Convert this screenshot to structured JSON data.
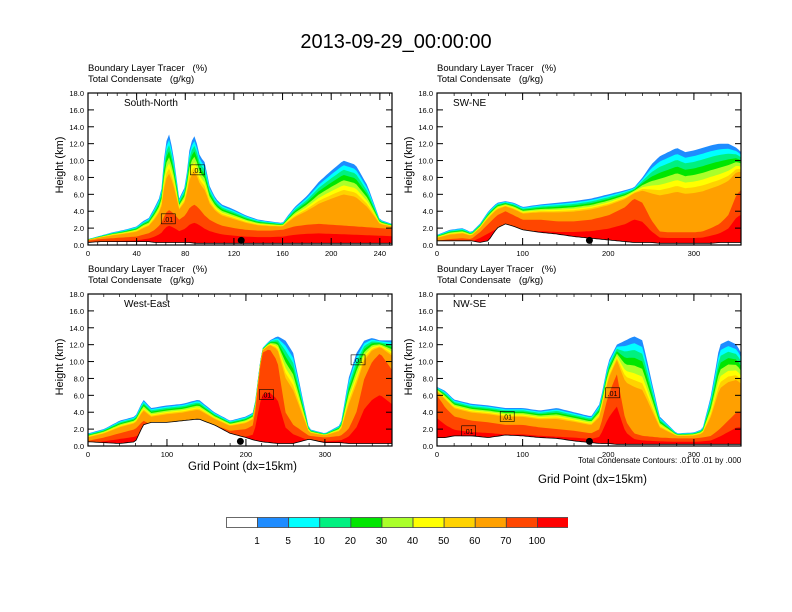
{
  "title": "2013-09-29_00:00:00",
  "legend": {
    "colors": [
      "#ffffff",
      "#1e8cff",
      "#00ffff",
      "#00f080",
      "#00e600",
      "#aaff2a",
      "#ffff00",
      "#ffd200",
      "#ffa000",
      "#ff4600",
      "#ff0000"
    ],
    "labels": [
      "1",
      "5",
      "10",
      "20",
      "30",
      "40",
      "50",
      "60",
      "70",
      "100"
    ]
  },
  "footnote": "Total Condensate Contours: .01 to .01 by .000",
  "chart_data": [
    {
      "type": "heatmap",
      "panel": "South-North",
      "header_line1": "Boundary Layer Tracer   (%)",
      "header_line2": "Total Condensate   (g/kg)",
      "ylabel": "Height (km)",
      "xlabel": "",
      "ylim": [
        0,
        18
      ],
      "yticks": [
        "0.0",
        "2.0",
        "4.0",
        "6.0",
        "8.0",
        "10.0",
        "12.0",
        "14.0",
        "16.0",
        "18.0"
      ],
      "xlim": [
        0,
        250
      ],
      "xticks": [
        "0",
        "40",
        "80",
        "120",
        "160",
        "200",
        "240"
      ],
      "xtick_values": [
        0,
        40,
        80,
        120,
        160,
        200,
        240
      ],
      "marker_x": 126,
      "contour_label": ".01",
      "contour_label_positions": [
        [
          66,
          3.1
        ],
        [
          90,
          8.9
        ]
      ],
      "cloud_profile": {
        "x": [
          0,
          10,
          20,
          30,
          40,
          45,
          50,
          55,
          60,
          63,
          66,
          70,
          75,
          80,
          84,
          88,
          92,
          96,
          100,
          105,
          110,
          120,
          130,
          140,
          150,
          160,
          165,
          170,
          180,
          190,
          200,
          210,
          220,
          230,
          240,
          250
        ],
        "top": [
          0.7,
          1.1,
          1.5,
          1.8,
          2.2,
          2.8,
          3.2,
          4.5,
          6.0,
          11.0,
          13.5,
          11.0,
          5.5,
          7.0,
          12.0,
          13.0,
          10.5,
          9.8,
          7.0,
          5.5,
          4.8,
          4.2,
          3.5,
          3.0,
          2.8,
          2.6,
          3.6,
          4.5,
          5.8,
          7.5,
          8.8,
          10.0,
          9.5,
          7.0,
          3.0,
          2.5
        ],
        "red_top": [
          0.5,
          0.7,
          0.8,
          0.9,
          1.0,
          1.2,
          1.4,
          1.8,
          2.5,
          3.5,
          4.2,
          3.8,
          3.0,
          3.5,
          4.5,
          4.8,
          4.2,
          3.5,
          3.0,
          2.6,
          2.3,
          2.0,
          1.8,
          1.7,
          1.7,
          1.8,
          2.0,
          2.2,
          2.4,
          2.5,
          2.4,
          2.3,
          2.2,
          2.1,
          2.0,
          1.9
        ]
      },
      "terrain": [
        0.3,
        0.4,
        0.4,
        0.4,
        0.4,
        0.4,
        0.4,
        0.3,
        0.3,
        0.3,
        0.3,
        0.3,
        0.3,
        0.3,
        0.3,
        0.2,
        0.2,
        0.2,
        0.2,
        0.2,
        0.2,
        0.2,
        0.2,
        0.2,
        0.2,
        0.2,
        0.2,
        0.2,
        0.2,
        0.2,
        0.2,
        0.2,
        0.2,
        0.2,
        0.2,
        0.2
      ]
    },
    {
      "type": "heatmap",
      "panel": "SW-NE",
      "header_line1": "Boundary Layer Tracer   (%)",
      "header_line2": "Total Condensate   (g/kg)",
      "ylabel": "Height (km)",
      "xlabel": "",
      "ylim": [
        0,
        18
      ],
      "yticks": [
        "0.0",
        "2.0",
        "4.0",
        "6.0",
        "8.0",
        "10.0",
        "12.0",
        "14.0",
        "16.0",
        "18.0"
      ],
      "xlim": [
        0,
        355
      ],
      "xticks": [
        "0",
        "100",
        "200",
        "300"
      ],
      "xtick_values": [
        0,
        100,
        200,
        300
      ],
      "marker_x": 178,
      "contour_label": "",
      "contour_label_positions": [],
      "cloud_profile": {
        "x": [
          0,
          15,
          30,
          40,
          50,
          60,
          70,
          80,
          90,
          100,
          120,
          140,
          160,
          180,
          200,
          220,
          230,
          240,
          250,
          260,
          270,
          280,
          290,
          300,
          310,
          320,
          330,
          340,
          350,
          355
        ],
        "top": [
          1.2,
          1.8,
          2.0,
          1.5,
          2.5,
          4.0,
          5.0,
          5.2,
          5.0,
          4.5,
          4.8,
          5.0,
          5.2,
          5.5,
          6.0,
          6.5,
          6.8,
          8.0,
          9.5,
          10.5,
          11.0,
          11.5,
          11.0,
          11.2,
          11.5,
          11.8,
          12.0,
          12.0,
          11.5,
          11.0
        ],
        "red_top": [
          0.5,
          0.7,
          0.8,
          0.7,
          1.5,
          2.5,
          3.5,
          4.0,
          3.5,
          3.0,
          3.0,
          2.8,
          2.8,
          3.0,
          3.5,
          4.5,
          5.5,
          5.0,
          3.0,
          1.6,
          1.5,
          1.5,
          1.5,
          1.5,
          1.6,
          2.0,
          2.5,
          3.5,
          6.0,
          6.5
        ]
      },
      "terrain": [
        0.5,
        0.5,
        0.5,
        0.5,
        0.3,
        0.5,
        2.0,
        2.5,
        2.2,
        1.8,
        1.5,
        1.3,
        1.0,
        0.8,
        0.6,
        0.4,
        0.3,
        0.3,
        0.3,
        0.2,
        0.2,
        0.2,
        0.2,
        0.2,
        0.2,
        0.2,
        0.3,
        0.3,
        0.3,
        0.3
      ]
    },
    {
      "type": "heatmap",
      "panel": "West-East",
      "header_line1": "Boundary Layer Tracer   (%)",
      "header_line2": "Total Condensate   (g/kg)",
      "ylabel": "Height (km)",
      "xlabel": "Grid Point (dx=15km)",
      "ylim": [
        0,
        18
      ],
      "yticks": [
        "0.0",
        "2.0",
        "4.0",
        "6.0",
        "8.0",
        "10.0",
        "12.0",
        "14.0",
        "16.0",
        "18.0"
      ],
      "xlim": [
        0,
        385
      ],
      "xticks": [
        "0",
        "100",
        "200",
        "300"
      ],
      "xtick_values": [
        0,
        100,
        200,
        300
      ],
      "marker_x": 193,
      "contour_label": ".01",
      "contour_label_positions": [
        [
          226,
          6.1
        ],
        [
          342,
          10.2
        ]
      ],
      "cloud_profile": {
        "x": [
          0,
          20,
          40,
          60,
          70,
          80,
          100,
          120,
          140,
          160,
          180,
          200,
          210,
          220,
          230,
          240,
          250,
          260,
          280,
          300,
          320,
          330,
          340,
          350,
          360,
          370,
          385
        ],
        "top": [
          1.5,
          2.0,
          3.0,
          3.5,
          5.5,
          4.5,
          4.8,
          5.0,
          5.5,
          4.0,
          3.0,
          3.5,
          4.0,
          11.5,
          12.5,
          13.0,
          12.5,
          11.0,
          2.0,
          1.5,
          2.5,
          8.0,
          11.0,
          12.5,
          12.8,
          12.5,
          12.5
        ],
        "red_top": [
          0.6,
          1.0,
          1.5,
          2.0,
          3.0,
          2.5,
          2.8,
          3.0,
          3.2,
          2.5,
          1.8,
          2.0,
          2.5,
          11.0,
          11.5,
          10.0,
          4.0,
          2.5,
          1.2,
          1.0,
          1.2,
          2.0,
          4.0,
          8.0,
          10.0,
          11.0,
          9.0
        ]
      },
      "terrain": [
        0.5,
        0.4,
        0.3,
        0.5,
        2.5,
        2.8,
        2.8,
        3.0,
        3.2,
        2.5,
        1.5,
        1.0,
        0.7,
        0.5,
        0.4,
        0.3,
        0.3,
        0.3,
        0.8,
        0.4,
        0.4,
        0.3,
        0.3,
        0.3,
        0.3,
        0.3,
        0.3
      ]
    },
    {
      "type": "heatmap",
      "panel": "NW-SE",
      "header_line1": "Boundary Layer Tracer   (%)",
      "header_line2": "Total Condensate   (g/kg)",
      "ylabel": "Height (km)",
      "xlabel": "Grid Point (dx=15km)",
      "ylim": [
        0,
        18
      ],
      "yticks": [
        "0.0",
        "2.0",
        "4.0",
        "6.0",
        "8.0",
        "10.0",
        "12.0",
        "14.0",
        "16.0",
        "18.0"
      ],
      "xlim": [
        0,
        355
      ],
      "xticks": [
        "0",
        "100",
        "200",
        "300"
      ],
      "xtick_values": [
        0,
        100,
        200,
        300
      ],
      "marker_x": 178,
      "contour_label": ".01",
      "contour_label_positions": [
        [
          37,
          1.8
        ],
        [
          82,
          3.5
        ],
        [
          205,
          6.3
        ]
      ],
      "cloud_profile": {
        "x": [
          0,
          10,
          20,
          40,
          60,
          80,
          100,
          120,
          140,
          160,
          180,
          190,
          200,
          210,
          220,
          230,
          240,
          260,
          280,
          300,
          310,
          320,
          330,
          340,
          350,
          355
        ],
        "top": [
          7.0,
          6.5,
          5.5,
          5.0,
          4.8,
          4.5,
          4.5,
          4.2,
          4.5,
          4.0,
          3.5,
          5.0,
          10.0,
          12.0,
          12.5,
          13.0,
          12.5,
          3.5,
          1.5,
          1.6,
          2.0,
          6.0,
          12.0,
          12.5,
          12.0,
          11.0
        ],
        "red_top": [
          6.0,
          4.5,
          3.5,
          3.0,
          2.8,
          2.5,
          2.5,
          2.2,
          2.0,
          1.8,
          1.5,
          2.0,
          6.0,
          8.5,
          3.0,
          1.5,
          1.2,
          1.0,
          0.9,
          0.9,
          1.0,
          1.2,
          2.0,
          3.0,
          4.0,
          4.0
        ]
      },
      "terrain": [
        1.0,
        1.0,
        1.2,
        1.2,
        1.0,
        1.3,
        1.2,
        1.0,
        0.9,
        0.6,
        0.4,
        0.3,
        0.3,
        0.2,
        0.2,
        0.2,
        0.2,
        0.2,
        0.2,
        0.2,
        0.2,
        0.2,
        0.2,
        0.2,
        0.2,
        0.2
      ]
    }
  ]
}
